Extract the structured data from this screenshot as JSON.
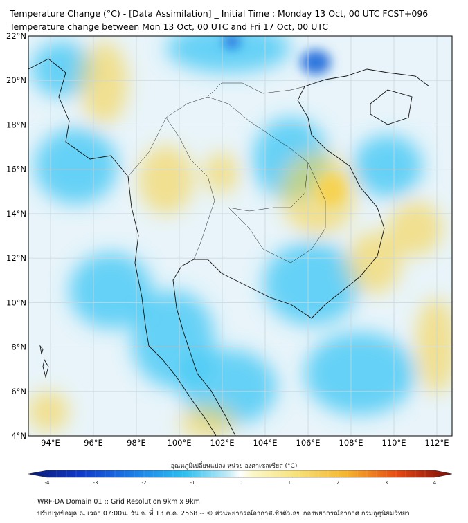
{
  "header": {
    "line1": "Temperature Change (°C) - [Data Assimilation] _ Initial Time : Monday 13 Oct, 00 UTC FCST+096",
    "line2": "Temperature change between Mon 13 Oct, 00 UTC and Fri 17 Oct, 00 UTC"
  },
  "map": {
    "lat_labels": [
      "22°N",
      "20°N",
      "18°N",
      "16°N",
      "14°N",
      "12°N",
      "10°N",
      "8°N",
      "6°N",
      "4°N"
    ],
    "lon_labels": [
      "94°E",
      "96°E",
      "98°E",
      "100°E",
      "102°E",
      "104°E",
      "106°E",
      "108°E",
      "110°E",
      "112°E"
    ],
    "colors": {
      "background": "#e8f4fa",
      "cool_light": "#a9e3f7",
      "cool": "#38c6f4",
      "cool_strong": "#1060d8",
      "warm_light": "#fbf3b0",
      "warm": "#f7d24a",
      "coast": "#111111"
    }
  },
  "colorbar": {
    "title": "อุณหภูมิเปลี่ยนแปลง หน่วย องศาเซลเซียส (°C)",
    "ticks": [
      "-4",
      "-3",
      "-2",
      "-1",
      "0",
      "1",
      "2",
      "3",
      "4"
    ],
    "min": -4,
    "max": 4
  },
  "footer": {
    "line1": "WRF-DA Domain 01 :: Grid Resolution 9km x 9km",
    "line2": "ปรับปรุงข้อมูล ณ เวลา 07:00น. วัน จ. ที่ 13 ต.ค. 2568 -- © ส่วนพยากรณ์อากาศเชิงตัวเลข กองพยากรณ์อากาศ กรมอุตุนิยมวิทยา"
  }
}
